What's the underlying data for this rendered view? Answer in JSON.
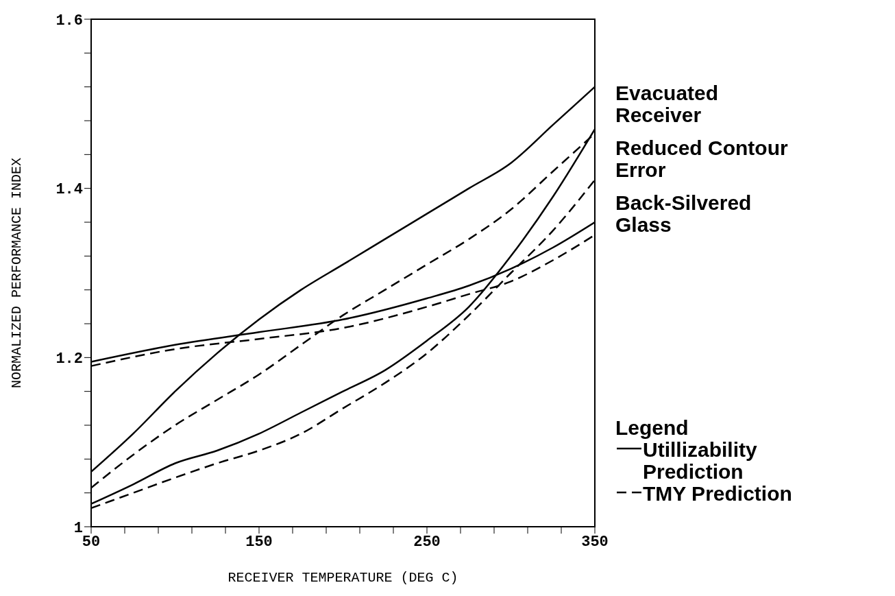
{
  "chart_data": {
    "type": "line",
    "xlabel": "RECEIVER TEMPERATURE    (DEG C)",
    "ylabel": "NORMALIZED PERFORMANCE INDEX",
    "legend_title": "Legend",
    "legend": "right",
    "xlim": [
      50,
      350
    ],
    "xticks": [
      50,
      {
        "value": 70,
        "label": null
      },
      {
        "value": 90,
        "label": null
      },
      {
        "value": 110,
        "label": null
      },
      {
        "value": 130,
        "label": null
      },
      150,
      {
        "value": 170,
        "label": null
      },
      {
        "value": 190,
        "label": null
      },
      {
        "value": 210,
        "label": null
      },
      {
        "value": 230,
        "label": null
      },
      250,
      {
        "value": 270,
        "label": null
      },
      {
        "value": 290,
        "label": null
      },
      {
        "value": 310,
        "label": null
      },
      {
        "value": 330,
        "label": null
      },
      350
    ],
    "ylim": [
      1,
      1.6
    ],
    "yticks": [
      1,
      {
        "value": 1.04,
        "label": null
      },
      {
        "value": 1.08,
        "label": null
      },
      {
        "value": 1.12,
        "label": null
      },
      {
        "value": 1.16,
        "label": null
      },
      1.2,
      {
        "value": 1.24,
        "label": null
      },
      {
        "value": 1.28,
        "label": null
      },
      {
        "value": 1.32,
        "label": null
      },
      {
        "value": 1.36,
        "label": null
      },
      1.4,
      {
        "value": 1.44,
        "label": null
      },
      {
        "value": 1.48,
        "label": null
      },
      {
        "value": 1.52,
        "label": null
      },
      {
        "value": 1.56,
        "label": null
      },
      1.6
    ],
    "grid": false,
    "marker": "none",
    "annotations": [
      "Evacuated Receiver",
      "Reduced Contour Error",
      "Back-Silvered Glass"
    ],
    "series": [
      {
        "name": "Utillizability Prediction",
        "color": "#000000",
        "line_style": "solid",
        "x": [
          50,
          75,
          100,
          125,
          150,
          175,
          200,
          225,
          250,
          275,
          300,
          325,
          350
        ],
        "values": [
          1.065,
          1.11,
          1.16,
          1.205,
          1.245,
          1.28,
          1.31,
          1.34,
          1.37,
          1.4,
          1.43,
          1.475,
          1.52
        ]
      },
      {
        "name": "TMY Prediction",
        "color": "#000000",
        "line_style": "dashed",
        "x": [
          50,
          75,
          100,
          125,
          150,
          175,
          200,
          225,
          250,
          275,
          300,
          325,
          350
        ],
        "values": [
          1.046,
          1.085,
          1.12,
          1.15,
          1.18,
          1.215,
          1.25,
          1.28,
          1.31,
          1.34,
          1.375,
          1.42,
          1.465
        ]
      },
      {
        "color": "#000000",
        "line_style": "solid",
        "x": [
          50,
          75,
          100,
          125,
          150,
          175,
          200,
          225,
          250,
          275,
          300,
          325,
          350
        ],
        "values": [
          1.027,
          1.05,
          1.075,
          1.09,
          1.11,
          1.135,
          1.16,
          1.185,
          1.22,
          1.26,
          1.32,
          1.39,
          1.47
        ]
      },
      {
        "color": "#000000",
        "line_style": "dashed",
        "x": [
          50,
          75,
          100,
          125,
          150,
          175,
          200,
          225,
          250,
          275,
          300,
          325,
          350
        ],
        "values": [
          1.022,
          1.04,
          1.058,
          1.075,
          1.09,
          1.11,
          1.14,
          1.17,
          1.205,
          1.25,
          1.3,
          1.35,
          1.41
        ]
      },
      {
        "color": "#000000",
        "line_style": "solid",
        "x": [
          50,
          100,
          150,
          200,
          250,
          275,
          300,
          325,
          350
        ],
        "values": [
          1.195,
          1.215,
          1.23,
          1.245,
          1.27,
          1.285,
          1.305,
          1.33,
          1.36
        ]
      },
      {
        "color": "#000000",
        "line_style": "dashed",
        "x": [
          50,
          100,
          150,
          200,
          250,
          275,
          300,
          325,
          350
        ],
        "values": [
          1.19,
          1.21,
          1.222,
          1.235,
          1.26,
          1.275,
          1.29,
          1.315,
          1.345
        ]
      }
    ]
  }
}
